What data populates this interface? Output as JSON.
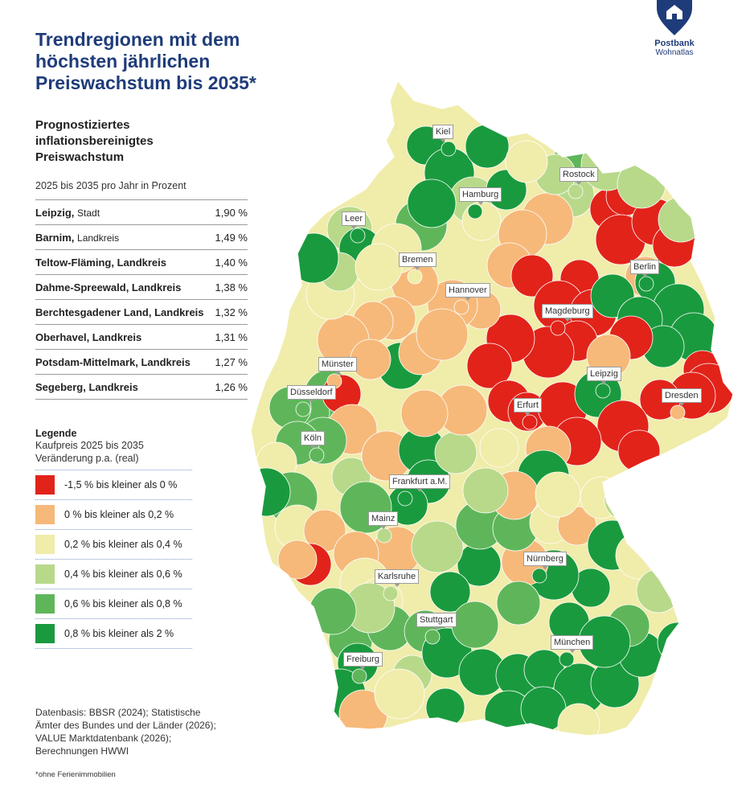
{
  "title_lines": [
    "Trendregionen mit dem",
    "höchsten jährlichen",
    "Preiswachstum bis 2035*"
  ],
  "logo": {
    "brand": "Postbank",
    "sub": "Wohnatlas",
    "color": "#1f3c7a"
  },
  "subhead_lines": [
    "Prognostiziertes",
    "inflationsbereinigtes",
    "Preiswachstum"
  ],
  "subunit": "2025 bis 2035 pro Jahr in Prozent",
  "ranking": [
    {
      "name": "Leipzig,",
      "kind": "Stadt",
      "value": "1,90 %"
    },
    {
      "name": "Barnim,",
      "kind": "Landkreis",
      "value": "1,49 %"
    },
    {
      "name": "Teltow-Fläming, Landkreis",
      "kind": "",
      "value": "1,40 %"
    },
    {
      "name": "Dahme-Spreewald, Landkreis",
      "kind": "",
      "value": "1,38 %"
    },
    {
      "name": "Berchtesgadener Land, Landkreis",
      "kind": "",
      "value": "1,32 %"
    },
    {
      "name": "Oberhavel, Landkreis",
      "kind": "",
      "value": "1,31 %"
    },
    {
      "name": "Potsdam-Mittelmark, Landkreis",
      "kind": "",
      "value": "1,27 %"
    },
    {
      "name": "Segeberg, Landkreis",
      "kind": "",
      "value": "1,26 %"
    }
  ],
  "legend": {
    "heading": "Legende",
    "sub_lines": [
      "Kaufpreis 2025 bis 2035",
      "Veränderung p.a. (real)"
    ],
    "items": [
      {
        "label": "-1,5 % bis kleiner als 0 %",
        "color": "#e2231a"
      },
      {
        "label": "0 % bis kleiner als 0,2 %",
        "color": "#f6b97a"
      },
      {
        "label": "0,2 % bis kleiner als 0,4 %",
        "color": "#f0ecaa"
      },
      {
        "label": "0,4 % bis kleiner als 0,6 %",
        "color": "#b8d98a"
      },
      {
        "label": "0,6 % bis kleiner als 0,8 %",
        "color": "#5fb65a"
      },
      {
        "label": "0,8 % bis kleiner als 2 %",
        "color": "#1a9a3e"
      }
    ]
  },
  "cities": [
    {
      "name": "Kiel",
      "cls": 5
    },
    {
      "name": "Rostock",
      "cls": 3
    },
    {
      "name": "Hamburg",
      "cls": 5
    },
    {
      "name": "Leer",
      "cls": 5
    },
    {
      "name": "Bremen",
      "cls": 2
    },
    {
      "name": "Berlin",
      "cls": 5
    },
    {
      "name": "Hannover",
      "cls": 1
    },
    {
      "name": "Magdeburg",
      "cls": 0
    },
    {
      "name": "Münster",
      "cls": 1
    },
    {
      "name": "Leipzig",
      "cls": 5
    },
    {
      "name": "Düsseldorf",
      "cls": 4
    },
    {
      "name": "Dresden",
      "cls": 1
    },
    {
      "name": "Erfurt",
      "cls": 0
    },
    {
      "name": "Köln",
      "cls": 4
    },
    {
      "name": "Frankfurt a.M.",
      "cls": 5
    },
    {
      "name": "Mainz",
      "cls": 3
    },
    {
      "name": "Nürnberg",
      "cls": 5
    },
    {
      "name": "Karlsruhe",
      "cls": 3
    },
    {
      "name": "Stuttgart",
      "cls": 4
    },
    {
      "name": "München",
      "cls": 5
    },
    {
      "name": "Freiburg",
      "cls": 4
    }
  ],
  "source_lines": [
    "Datenbasis: BBSR (2024); Statistische",
    "Ämter des Bundes und der Länder (2026);",
    "VALUE Marktdatenbank (2026);",
    "Berechnungen HWWI"
  ],
  "footnote": "*ohne Ferienimmobilien"
}
